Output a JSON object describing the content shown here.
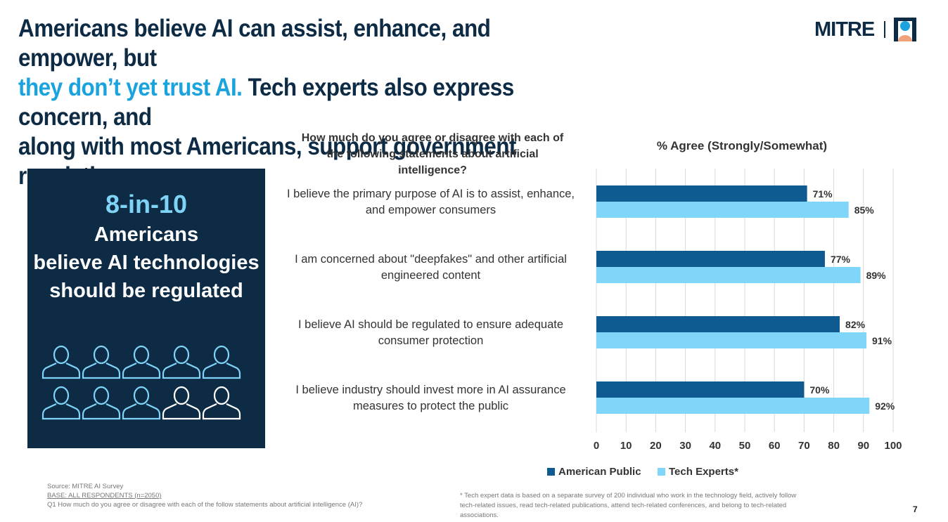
{
  "headline": {
    "line1": "Americans believe AI can assist, enhance, and empower, but",
    "accent": "they don’t yet trust AI.",
    "rest": " Tech experts also express concern, and",
    "line3": "along with most Americans, support government regulation."
  },
  "logo": {
    "text": "MITRE"
  },
  "panel": {
    "stat": "8-in-10",
    "line1": "Americans",
    "line2": "believe AI technologies",
    "line3": "should be regulated",
    "people_total": 10,
    "people_highlighted": 8
  },
  "question": "How much do you agree or disagree with each of the following statements about artificial intelligence?",
  "chart_data": {
    "type": "bar",
    "orientation": "horizontal",
    "title": "% Agree (Strongly/Somewhat)",
    "categories": [
      "I believe the primary purpose of AI is to assist, enhance, and empower consumers",
      "I am concerned about \"deepfakes\" and other artificial engineered content",
      "I believe AI should be regulated to ensure adequate consumer protection",
      "I believe industry should invest more in AI assurance measures to protect the public"
    ],
    "series": [
      {
        "name": "American Public",
        "values": [
          71,
          77,
          82,
          70
        ],
        "color": "#0f5a91",
        "labels": [
          "71%",
          "77%",
          "82%",
          "70%"
        ]
      },
      {
        "name": "Tech Experts*",
        "values": [
          85,
          89,
          91,
          92
        ],
        "color": "#7fd6f8",
        "labels": [
          "85%",
          "89%",
          "91%",
          "92%"
        ]
      }
    ],
    "xlim": [
      0,
      100
    ],
    "xticks": [
      "0",
      "10",
      "20",
      "30",
      "40",
      "50",
      "60",
      "70",
      "80",
      "90",
      "100"
    ],
    "grid": true,
    "legend_position": "bottom"
  },
  "source": {
    "line1": "Source: MITRE AI Survey",
    "line2": "BASE: ALL RESPONDENTS (n=2050)",
    "line3": "Q1  How much do you agree or disagree with each of the follow statements about artificial intelligence (AI)?"
  },
  "footnote": {
    "line1": "* Tech expert data is based on a separate survey of 200 individual who work in the technology field, actively follow",
    "line2": "tech-related issues, read tech-related publications, attend tech-related conferences, and belong to tech-related associations."
  },
  "page_number": "7"
}
